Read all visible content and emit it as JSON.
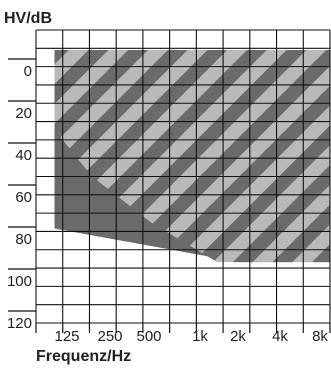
{
  "chart_data": {
    "type": "area",
    "title": "",
    "ylabel": "HV/dB",
    "xlabel": "Frequenz/Hz",
    "y_ticks": [
      "0",
      "20",
      "40",
      "60",
      "80",
      "100",
      "120"
    ],
    "y_tick_values": [
      0,
      20,
      40,
      60,
      80,
      100,
      120
    ],
    "x_ticks": [
      "125",
      "250",
      "500",
      "1k",
      "2k",
      "4k",
      "8k"
    ],
    "ylim": [
      -10,
      120
    ],
    "y_inverted": true,
    "grid": true,
    "legend": "none",
    "colors": {
      "grid": "#111111",
      "dark_region": "#6b6b6b",
      "stripe_light": "#b9b9b9",
      "stripe_dark": "#6b6b6b"
    },
    "regions": [
      {
        "fill": "solid-dark",
        "boundary": [
          {
            "x": 0,
            "y": 21
          },
          {
            "x": 0,
            "y": 75
          },
          {
            "x": 5.0,
            "y": 91
          },
          {
            "x": 7.6,
            "y": 91
          },
          {
            "x": 7.6,
            "y": 0
          },
          {
            "x": 5.2,
            "y": 0
          },
          {
            "x": 5.2,
            "y": -4
          },
          {
            "x": 4.4,
            "y": -5
          }
        ]
      },
      {
        "fill": "diagonal-stripes",
        "boundary": [
          {
            "x": 0,
            "y": -10
          },
          {
            "x": 7.6,
            "y": -10
          },
          {
            "x": 7.6,
            "y": 91
          },
          {
            "x": 4.4,
            "y": 91
          },
          {
            "x": 2.6,
            "y": 72
          },
          {
            "x": 1.0,
            "y": 50
          },
          {
            "x": 0,
            "y": 28
          }
        ]
      }
    ]
  }
}
